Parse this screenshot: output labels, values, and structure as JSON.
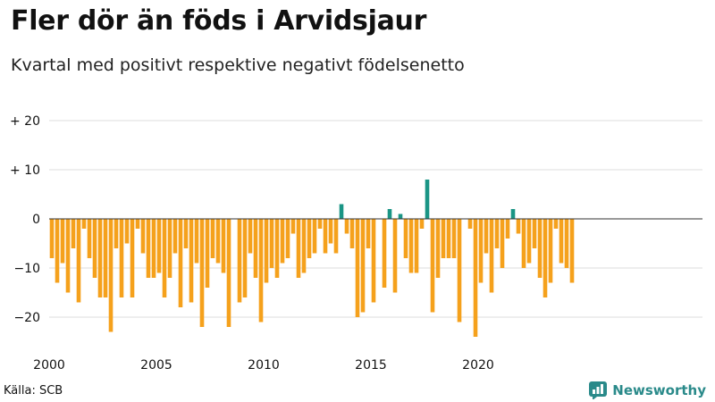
{
  "header": {
    "title": "Fler dör än föds i Arvidsjaur",
    "subtitle": "Kvartal med positivt respektive negativt födelsenetto"
  },
  "footer": {
    "source": "Källa: SCB",
    "brand": "Newsworthy"
  },
  "colors": {
    "positive": "#1a9585",
    "negative": "#f5a11c",
    "grid": "#dddddd",
    "zero_line": "#333333",
    "brand": "#2a8a8a"
  },
  "chart_data": {
    "type": "bar",
    "title": "Fler dör än föds i Arvidsjaur",
    "subtitle": "Kvartal med positivt respektive negativt födelsenetto",
    "xlabel": "",
    "ylabel": "",
    "ylim": [
      -26,
      20
    ],
    "y_ticks": [
      20,
      10,
      0,
      -10,
      -20
    ],
    "y_tick_labels": [
      "+ 20",
      "+ 10",
      "0",
      "−10",
      "−20"
    ],
    "x_ticks": [
      2000,
      2005,
      2010,
      2015,
      2020
    ],
    "x_tick_labels": [
      "2000",
      "2005",
      "2010",
      "2015",
      "2020"
    ],
    "start_year": 2000,
    "periods_per_year": 4,
    "grid": true,
    "values": [
      -8,
      -13,
      -9,
      -15,
      -6,
      -17,
      -2,
      -8,
      -12,
      -16,
      -16,
      -23,
      -6,
      -16,
      -5,
      -16,
      -2,
      -7,
      -12,
      -12,
      -11,
      -16,
      -12,
      -7,
      -18,
      -6,
      -17,
      -9,
      -22,
      -14,
      -8,
      -9,
      -11,
      -22,
      0,
      -17,
      -16,
      -7,
      -12,
      -21,
      -13,
      -10,
      -12,
      -9,
      -8,
      -3,
      -12,
      -11,
      -8,
      -7,
      -2,
      -7,
      -5,
      -7,
      3,
      -3,
      -6,
      -20,
      -19,
      -6,
      -17,
      0,
      -14,
      2,
      -15,
      1,
      -8,
      -11,
      -11,
      -2,
      8,
      -19,
      -12,
      -8,
      -8,
      -8,
      -21,
      0,
      -2,
      -24,
      -13,
      -7,
      -15,
      -6,
      -10,
      -4,
      2,
      -3,
      -10,
      -9,
      -6,
      -12,
      -16,
      -13,
      -2,
      -9,
      -10,
      -13
    ]
  }
}
